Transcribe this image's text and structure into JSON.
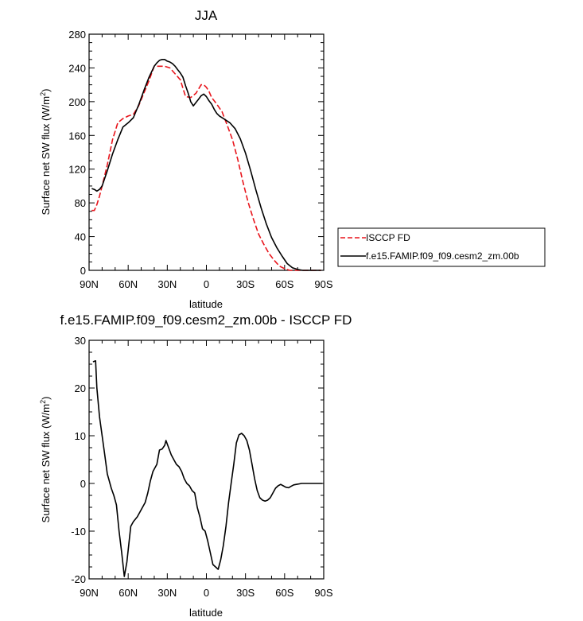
{
  "chart_data": [
    {
      "type": "line",
      "title": "JJA",
      "xlabel": "latitude",
      "ylabel": "Surface net SW flux (W/m",
      "ylabel_sup": "2",
      "ylabel_close": ")",
      "xlim": [
        90,
        -90
      ],
      "ylim": [
        0,
        280
      ],
      "x_ticks": [
        90,
        60,
        30,
        0,
        -30,
        -60,
        -90
      ],
      "x_tick_labels": [
        "90N",
        "60N",
        "30N",
        "0",
        "30S",
        "60S",
        "90S"
      ],
      "y_ticks": [
        0,
        40,
        80,
        120,
        160,
        200,
        240,
        280
      ],
      "y_tick_labels": [
        "0",
        "40",
        "80",
        "120",
        "160",
        "200",
        "240",
        "280"
      ],
      "legend_position": "right",
      "series": [
        {
          "name": "ISCCP FD",
          "color": "#e8141b",
          "dash": "dashed",
          "x": [
            88,
            86,
            84,
            82,
            80,
            76,
            72,
            68,
            64,
            60,
            56,
            52,
            48,
            44,
            40,
            36,
            32,
            28,
            24,
            20,
            16,
            12,
            8,
            4,
            2,
            0,
            -2,
            -4,
            -8,
            -12,
            -16,
            -20,
            -24,
            -28,
            -32,
            -36,
            -40,
            -44,
            -48,
            -52,
            -56,
            -60,
            -64,
            -68,
            -72,
            -76,
            -80,
            -84,
            -88
          ],
          "y": [
            71,
            71,
            78,
            88,
            100,
            125,
            155,
            175,
            180,
            183,
            185,
            195,
            210,
            225,
            242,
            242,
            242,
            240,
            233,
            226,
            206,
            205,
            210,
            220,
            220,
            217,
            212,
            205,
            197,
            188,
            172,
            155,
            132,
            105,
            81,
            61,
            43,
            31,
            20,
            12,
            5,
            2,
            0,
            0,
            0,
            0,
            0,
            0,
            0
          ]
        },
        {
          "name": "f.e15.FAMIP.f09_f09.cesm2_zm.00b",
          "color": "#000000",
          "dash": "solid",
          "x": [
            88,
            86,
            84,
            82,
            80,
            76,
            72,
            68,
            64,
            60,
            56,
            52,
            48,
            44,
            40,
            38,
            36,
            34,
            32,
            30,
            28,
            26,
            24,
            22,
            20,
            18,
            16,
            14,
            12,
            10,
            8,
            6,
            4,
            2,
            0,
            -2,
            -4,
            -6,
            -8,
            -10,
            -14,
            -18,
            -22,
            -26,
            -30,
            -34,
            -38,
            -42,
            -46,
            -50,
            -54,
            -58,
            -62,
            -66,
            -70,
            -74,
            -78,
            -82,
            -86,
            -88
          ],
          "y": [
            97,
            96,
            94,
            96,
            100,
            118,
            138,
            155,
            170,
            175,
            181,
            196,
            213,
            229,
            242,
            246,
            249,
            250,
            250,
            248,
            247,
            245,
            242,
            238,
            234,
            229,
            219,
            210,
            200,
            195,
            199,
            203,
            207,
            209,
            206,
            201,
            197,
            191,
            186,
            183,
            179,
            175,
            168,
            156,
            139,
            118,
            95,
            74,
            55,
            39,
            27,
            17,
            8,
            3,
            1,
            0,
            0,
            0,
            0,
            0
          ]
        }
      ]
    },
    {
      "type": "line",
      "title": "f.e15.FAMIP.f09_f09.cesm2_zm.00b - ISCCP FD",
      "xlabel": "latitude",
      "ylabel": "Surface net SW flux (W/m",
      "ylabel_sup": "2",
      "ylabel_close": ")",
      "xlim": [
        90,
        -90
      ],
      "ylim": [
        -20,
        30
      ],
      "x_ticks": [
        90,
        60,
        30,
        0,
        -30,
        -60,
        -90
      ],
      "x_tick_labels": [
        "90N",
        "60N",
        "30N",
        "0",
        "30S",
        "60S",
        "90S"
      ],
      "y_ticks": [
        -20,
        -10,
        0,
        10,
        20,
        30
      ],
      "y_tick_labels": [
        "-20",
        "-10",
        "0",
        "10",
        "20",
        "30"
      ],
      "series": [
        {
          "color": "#000000",
          "dash": "solid",
          "x": [
            87,
            85,
            84,
            82,
            80,
            78,
            76,
            75,
            73,
            71,
            69,
            67,
            65,
            63,
            61,
            58,
            56,
            53,
            51,
            49,
            47,
            45,
            43,
            41,
            40,
            38,
            36,
            34,
            32,
            31,
            29,
            27,
            25,
            23,
            21,
            19,
            17,
            15,
            13,
            11,
            9,
            7,
            5,
            3,
            1,
            -1,
            -3,
            -5,
            -7,
            -9,
            -11,
            -13,
            -15,
            -17,
            -19,
            -21,
            -23,
            -25,
            -27,
            -29,
            -31,
            -33,
            -35,
            -37,
            -39,
            -41,
            -43,
            -45,
            -47,
            -49,
            -51,
            -53,
            -55,
            -57,
            -59,
            -61,
            -63,
            -65,
            -67,
            -69,
            -71,
            -73,
            -75,
            -77,
            -79,
            -81,
            -83,
            -85,
            -87,
            -89
          ],
          "y": [
            25.5,
            25.7,
            20,
            14,
            10,
            6,
            2,
            1,
            -1,
            -2.5,
            -4.5,
            -10,
            -14.5,
            -19.5,
            -16.5,
            -9,
            -8,
            -7,
            -6,
            -5,
            -4,
            -2,
            0.5,
            2.5,
            3,
            4,
            7,
            7.2,
            8,
            9,
            7.5,
            6,
            5,
            4,
            3.5,
            2.5,
            1,
            0,
            -0.5,
            -1.5,
            -2,
            -5,
            -7,
            -9.5,
            -10,
            -12,
            -14.5,
            -17,
            -17.5,
            -18,
            -16,
            -13,
            -9,
            -4,
            0,
            4,
            8.5,
            10.2,
            10.5,
            10,
            9,
            7,
            4,
            1,
            -1.5,
            -3,
            -3.5,
            -3.7,
            -3.5,
            -3,
            -2,
            -1,
            -0.5,
            -0.2,
            -0.5,
            -0.8,
            -0.9,
            -0.6,
            -0.3,
            -0.2,
            -0.1,
            0,
            0,
            0,
            0,
            0,
            0,
            0,
            0,
            0
          ]
        }
      ]
    }
  ]
}
